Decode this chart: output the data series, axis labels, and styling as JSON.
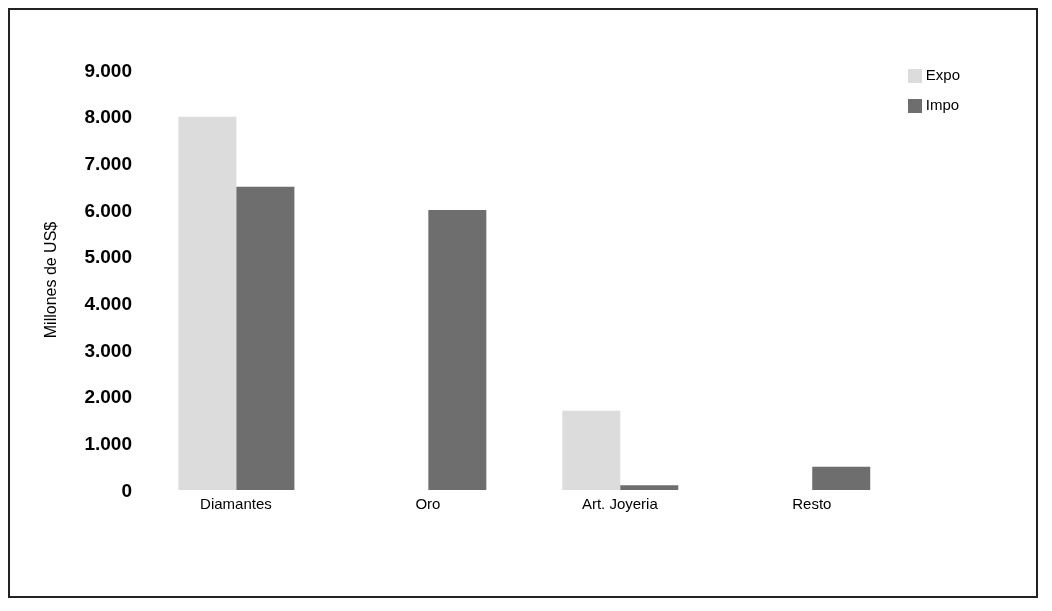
{
  "chart_data": {
    "type": "bar",
    "ylabel": "Millones de US$",
    "categories": [
      "Diamantes",
      "Oro",
      "Art. Joyeria",
      "Resto"
    ],
    "series": [
      {
        "name": "Expo",
        "color": "#dcdcdc",
        "values": [
          8000,
          0,
          1700,
          0
        ]
      },
      {
        "name": "Impo",
        "color": "#6e6e6e",
        "values": [
          6500,
          6000,
          100,
          500
        ]
      }
    ],
    "ylim": [
      0,
      9000
    ],
    "yticks": [
      {
        "value": 0,
        "label": "0"
      },
      {
        "value": 1000,
        "label": "1.000"
      },
      {
        "value": 2000,
        "label": "2.000"
      },
      {
        "value": 3000,
        "label": "3.000"
      },
      {
        "value": 4000,
        "label": "4.000"
      },
      {
        "value": 5000,
        "label": "5.000"
      },
      {
        "value": 6000,
        "label": "6.000"
      },
      {
        "value": 7000,
        "label": "7.000"
      },
      {
        "value": 8000,
        "label": "8.000"
      },
      {
        "value": 9000,
        "label": "9.000"
      }
    ],
    "grid": false,
    "legend": "top right"
  }
}
